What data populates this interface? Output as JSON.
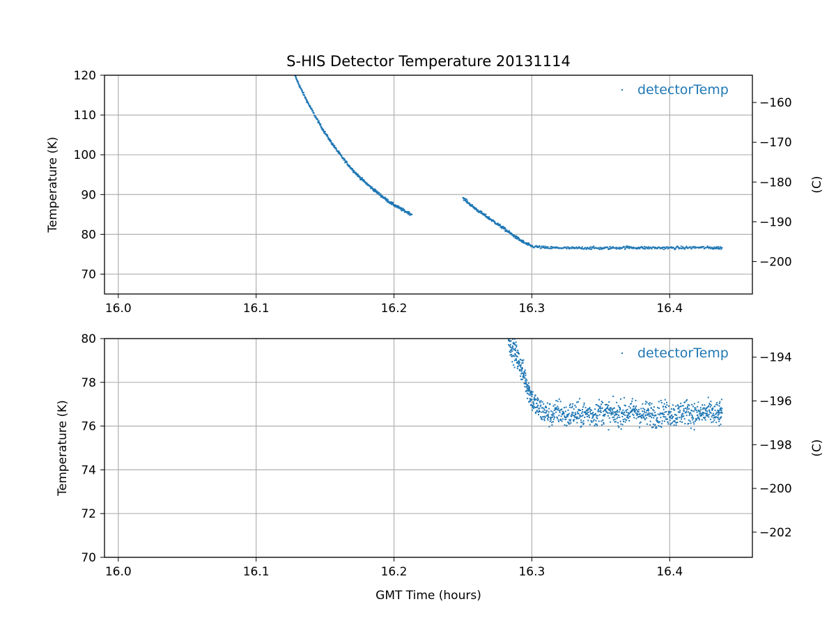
{
  "chart_data": [
    {
      "type": "scatter",
      "title": "S-HIS Detector Temperature 20131114",
      "xlabel": "",
      "ylabel": "Temperature (K)",
      "ylabel_right": "(C)",
      "xlim": [
        15.99,
        16.46
      ],
      "ylim": [
        65,
        120
      ],
      "ylim_right": [
        -208.15,
        -153.15
      ],
      "x_ticks": [
        "16.0",
        "16.1",
        "16.2",
        "16.3",
        "16.4"
      ],
      "y_ticks": [
        "70",
        "80",
        "90",
        "100",
        "110",
        "120"
      ],
      "y_ticks_right": [
        "−200",
        "−190",
        "−180",
        "−170",
        "−160"
      ],
      "grid": true,
      "legend_position": "top-right",
      "color": "#1f77b4",
      "series": [
        {
          "name": "detectorTemp",
          "x": [
            16.128,
            16.133,
            16.138,
            16.143,
            16.148,
            16.153,
            16.158,
            16.163,
            16.168,
            16.173,
            16.178,
            16.183,
            16.188,
            16.193,
            16.198,
            16.203,
            16.208,
            16.213,
            16.25,
            16.255,
            16.26,
            16.265,
            16.27,
            16.275,
            16.28,
            16.285,
            16.29,
            16.295,
            16.3,
            16.31,
            16.32,
            16.33,
            16.34,
            16.35,
            16.36,
            16.37,
            16.38,
            16.39,
            16.4,
            16.41,
            16.42,
            16.43,
            16.438
          ],
          "y": [
            120.0,
            116.2,
            112.8,
            109.6,
            106.6,
            103.9,
            101.4,
            99.1,
            97.0,
            95.1,
            93.4,
            91.9,
            90.5,
            89.1,
            87.8,
            86.8,
            85.8,
            85.0,
            89.2,
            87.6,
            86.2,
            85.0,
            83.8,
            82.6,
            81.4,
            80.1,
            78.9,
            77.8,
            77.0,
            76.6,
            76.6,
            76.5,
            76.6,
            76.5,
            76.6,
            76.7,
            76.6,
            76.6,
            76.6,
            76.6,
            76.7,
            76.6,
            76.6
          ]
        }
      ]
    },
    {
      "type": "scatter",
      "title": "",
      "xlabel": "GMT Time (hours)",
      "ylabel": "Temperature (K)",
      "ylabel_right": "(C)",
      "xlim": [
        15.99,
        16.46
      ],
      "ylim": [
        70,
        80
      ],
      "ylim_right": [
        -203.15,
        -193.15
      ],
      "x_ticks": [
        "16.0",
        "16.1",
        "16.2",
        "16.3",
        "16.4"
      ],
      "y_ticks": [
        "70",
        "72",
        "74",
        "76",
        "78",
        "80"
      ],
      "y_ticks_right": [
        "−202",
        "−200",
        "−198",
        "−196",
        "−194"
      ],
      "grid": true,
      "legend_position": "top-right",
      "color": "#1f77b4",
      "series": [
        {
          "name": "detectorTemp",
          "x": [
            16.283,
            16.286,
            16.289,
            16.292,
            16.295,
            16.298,
            16.301,
            16.305,
            16.31,
            16.315,
            16.32,
            16.325,
            16.33,
            16.335,
            16.34,
            16.345,
            16.35,
            16.355,
            16.36,
            16.365,
            16.37,
            16.375,
            16.38,
            16.385,
            16.39,
            16.395,
            16.4,
            16.405,
            16.41,
            16.415,
            16.42,
            16.425,
            16.43,
            16.435,
            16.438
          ],
          "y": [
            80.0,
            79.6,
            79.2,
            78.7,
            78.2,
            77.6,
            77.1,
            76.8,
            76.6,
            76.5,
            76.7,
            76.4,
            76.6,
            76.5,
            76.6,
            76.5,
            76.7,
            76.6,
            76.5,
            76.6,
            76.6,
            76.7,
            76.5,
            76.6,
            76.5,
            76.6,
            76.6,
            76.5,
            76.7,
            76.6,
            76.5,
            76.6,
            76.6,
            76.5,
            76.6
          ]
        }
      ]
    }
  ]
}
